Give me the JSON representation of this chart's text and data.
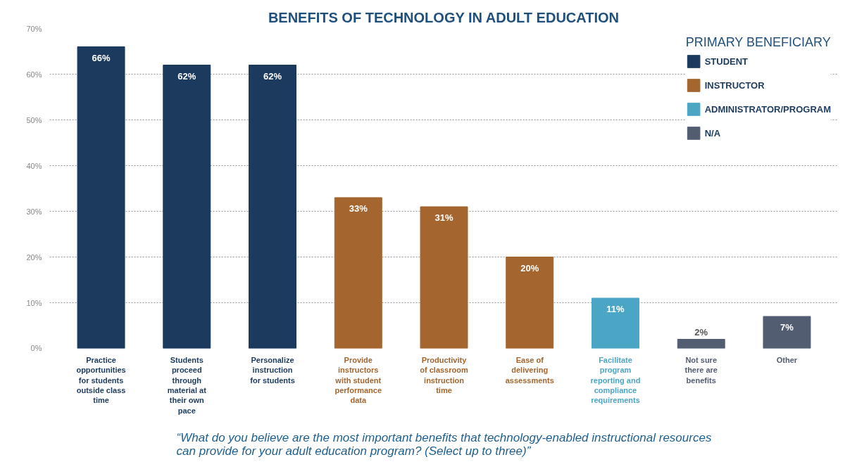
{
  "chart_data": {
    "type": "bar",
    "title": "BENEFITS OF TECHNOLOGY IN ADULT EDUCATION",
    "categories": [
      "Practice opportunities for students outside class time",
      "Students proceed through material at their own pace",
      "Personalize instruction for students",
      "Provide instructors with student performance data",
      "Productivity of classroom instruction time",
      "Ease of delivering assessments",
      "Facilitate program reporting and compliance requirements",
      "Not sure there are benefits",
      "Other"
    ],
    "stacked": true,
    "series": [
      {
        "name": "STUDENT",
        "color": "#1c3a5e",
        "values": [
          66,
          62,
          62,
          null,
          null,
          null,
          null,
          null,
          null
        ],
        "value_labels": [
          "66%",
          "62%",
          "62%",
          null,
          null,
          null,
          null,
          null,
          null
        ]
      },
      {
        "name": "INSTRUCTOR",
        "color": "#a4652e",
        "values": [
          null,
          null,
          null,
          33,
          31,
          20,
          null,
          null,
          null
        ],
        "value_labels": [
          null,
          null,
          null,
          "33%",
          "31%",
          "20%",
          null,
          null,
          null
        ]
      },
      {
        "name": "ADMINISTRATOR/PROGRAM",
        "color": "#4ba6c6",
        "values": [
          null,
          null,
          null,
          null,
          null,
          null,
          11,
          null,
          null
        ],
        "value_labels": [
          null,
          null,
          null,
          null,
          null,
          null,
          "11%",
          null,
          null
        ]
      },
      {
        "name": "N/A",
        "color": "#535d72",
        "values": [
          null,
          null,
          null,
          null,
          null,
          null,
          null,
          2,
          7
        ],
        "value_labels": [
          null,
          null,
          null,
          null,
          null,
          null,
          null,
          "2%",
          "7%"
        ]
      }
    ],
    "legend_title": "PRIMARY BENEFICIARY",
    "legend": "top right",
    "ylim": [
      0,
      70
    ],
    "yticks": [
      {
        "value": 0,
        "label": "0%"
      },
      {
        "value": 10,
        "label": "10%"
      },
      {
        "value": 20,
        "label": "20%"
      },
      {
        "value": 30,
        "label": "30%"
      },
      {
        "value": 40,
        "label": "40%"
      },
      {
        "value": 50,
        "label": "50%"
      },
      {
        "value": 60,
        "label": "60%"
      },
      {
        "value": 70,
        "label": "70%"
      }
    ],
    "grid": "y",
    "annotations": [
      "“What do you believe are the most important benefits that technology-enabled instructional resources can provide for your adult education program? (Select up to three)”"
    ]
  }
}
